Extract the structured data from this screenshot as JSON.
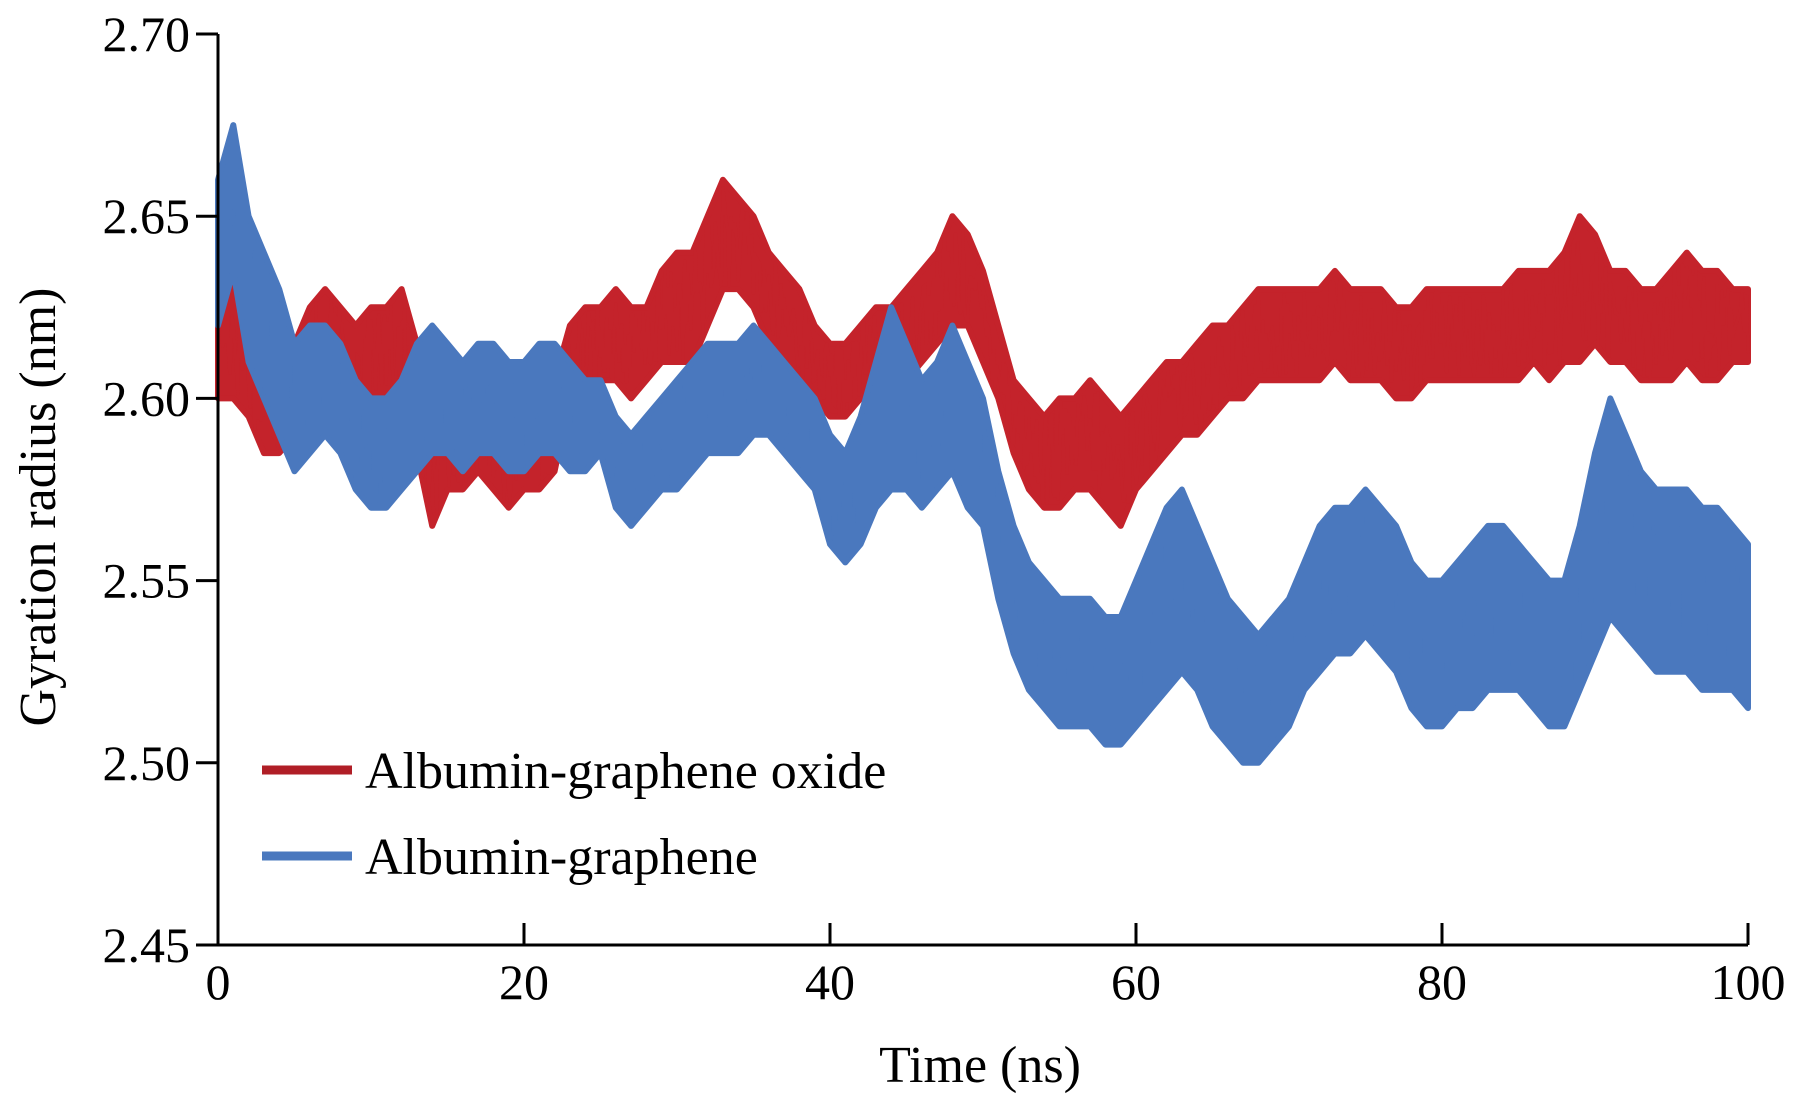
{
  "chart_data": {
    "type": "line",
    "title": "",
    "xlabel": "Time (ns)",
    "ylabel": "Gyration radius (nm)",
    "xlim": [
      0,
      100
    ],
    "ylim": [
      2.45,
      2.7
    ],
    "xticks": [
      0,
      20,
      40,
      60,
      80,
      100
    ],
    "xtick_labels": [
      "0",
      "20",
      "40",
      "60",
      "80",
      "100"
    ],
    "yticks": [
      2.45,
      2.5,
      2.55,
      2.6,
      2.65,
      2.7
    ],
    "ytick_labels": [
      "2.45",
      "2.50",
      "2.55",
      "2.60",
      "2.65",
      "2.70"
    ],
    "grid": false,
    "legend_position": "bottom-left",
    "series": [
      {
        "name": "Albumin-graphene oxide",
        "color": "#c4232b",
        "x": [
          0,
          1,
          2,
          3,
          4,
          5,
          6,
          7,
          8,
          9,
          10,
          11,
          12,
          13,
          14,
          15,
          16,
          17,
          18,
          19,
          20,
          21,
          22,
          23,
          24,
          25,
          26,
          27,
          28,
          29,
          30,
          31,
          32,
          33,
          34,
          35,
          36,
          37,
          38,
          39,
          40,
          41,
          42,
          43,
          44,
          45,
          46,
          47,
          48,
          49,
          50,
          51,
          52,
          53,
          54,
          55,
          56,
          57,
          58,
          59,
          60,
          61,
          62,
          63,
          64,
          65,
          66,
          67,
          68,
          69,
          70,
          71,
          72,
          73,
          74,
          75,
          76,
          77,
          78,
          79,
          80,
          81,
          82,
          83,
          84,
          85,
          86,
          87,
          88,
          89,
          90,
          91,
          92,
          93,
          94,
          95,
          96,
          97,
          98,
          99,
          100
        ],
        "low": [
          2.6,
          2.6,
          2.595,
          2.585,
          2.585,
          2.59,
          2.6,
          2.605,
          2.6,
          2.595,
          2.6,
          2.6,
          2.595,
          2.585,
          2.565,
          2.575,
          2.575,
          2.58,
          2.575,
          2.57,
          2.575,
          2.575,
          2.58,
          2.6,
          2.6,
          2.605,
          2.605,
          2.6,
          2.605,
          2.61,
          2.61,
          2.61,
          2.62,
          2.63,
          2.63,
          2.625,
          2.615,
          2.61,
          2.605,
          2.6,
          2.595,
          2.595,
          2.6,
          2.605,
          2.6,
          2.605,
          2.61,
          2.615,
          2.62,
          2.62,
          2.61,
          2.6,
          2.585,
          2.575,
          2.57,
          2.57,
          2.575,
          2.575,
          2.57,
          2.565,
          2.575,
          2.58,
          2.585,
          2.59,
          2.59,
          2.595,
          2.6,
          2.6,
          2.605,
          2.605,
          2.605,
          2.605,
          2.605,
          2.61,
          2.605,
          2.605,
          2.605,
          2.6,
          2.6,
          2.605,
          2.605,
          2.605,
          2.605,
          2.605,
          2.605,
          2.605,
          2.61,
          2.605,
          2.61,
          2.61,
          2.615,
          2.61,
          2.61,
          2.605,
          2.605,
          2.605,
          2.61,
          2.605,
          2.605,
          2.61,
          2.61
        ],
        "high": [
          2.65,
          2.64,
          2.625,
          2.615,
          2.61,
          2.615,
          2.625,
          2.63,
          2.625,
          2.62,
          2.625,
          2.625,
          2.63,
          2.615,
          2.6,
          2.6,
          2.595,
          2.6,
          2.605,
          2.6,
          2.6,
          2.6,
          2.605,
          2.62,
          2.625,
          2.625,
          2.63,
          2.625,
          2.625,
          2.635,
          2.64,
          2.64,
          2.65,
          2.66,
          2.655,
          2.65,
          2.64,
          2.635,
          2.63,
          2.62,
          2.615,
          2.615,
          2.62,
          2.625,
          2.625,
          2.63,
          2.635,
          2.64,
          2.65,
          2.645,
          2.635,
          2.62,
          2.605,
          2.6,
          2.595,
          2.6,
          2.6,
          2.605,
          2.6,
          2.595,
          2.6,
          2.605,
          2.61,
          2.61,
          2.615,
          2.62,
          2.62,
          2.625,
          2.63,
          2.63,
          2.63,
          2.63,
          2.63,
          2.635,
          2.63,
          2.63,
          2.63,
          2.625,
          2.625,
          2.63,
          2.63,
          2.63,
          2.63,
          2.63,
          2.63,
          2.635,
          2.635,
          2.635,
          2.64,
          2.65,
          2.645,
          2.635,
          2.635,
          2.63,
          2.63,
          2.635,
          2.64,
          2.635,
          2.635,
          2.63,
          2.63
        ]
      },
      {
        "name": "Albumin-graphene",
        "color": "#4a78be",
        "x": [
          0,
          1,
          2,
          3,
          4,
          5,
          6,
          7,
          8,
          9,
          10,
          11,
          12,
          13,
          14,
          15,
          16,
          17,
          18,
          19,
          20,
          21,
          22,
          23,
          24,
          25,
          26,
          27,
          28,
          29,
          30,
          31,
          32,
          33,
          34,
          35,
          36,
          37,
          38,
          39,
          40,
          41,
          42,
          43,
          44,
          45,
          46,
          47,
          48,
          49,
          50,
          51,
          52,
          53,
          54,
          55,
          56,
          57,
          58,
          59,
          60,
          61,
          62,
          63,
          64,
          65,
          66,
          67,
          68,
          69,
          70,
          71,
          72,
          73,
          74,
          75,
          76,
          77,
          78,
          79,
          80,
          81,
          82,
          83,
          84,
          85,
          86,
          87,
          88,
          89,
          90,
          91,
          92,
          93,
          94,
          95,
          96,
          97,
          98,
          99,
          100
        ],
        "low": [
          2.62,
          2.635,
          2.61,
          2.6,
          2.59,
          2.58,
          2.585,
          2.59,
          2.585,
          2.575,
          2.57,
          2.57,
          2.575,
          2.58,
          2.585,
          2.585,
          2.58,
          2.585,
          2.585,
          2.58,
          2.58,
          2.585,
          2.585,
          2.58,
          2.58,
          2.585,
          2.57,
          2.565,
          2.57,
          2.575,
          2.575,
          2.58,
          2.585,
          2.585,
          2.585,
          2.59,
          2.59,
          2.585,
          2.58,
          2.575,
          2.56,
          2.555,
          2.56,
          2.57,
          2.575,
          2.575,
          2.57,
          2.575,
          2.58,
          2.57,
          2.565,
          2.545,
          2.53,
          2.52,
          2.515,
          2.51,
          2.51,
          2.51,
          2.505,
          2.505,
          2.51,
          2.515,
          2.52,
          2.525,
          2.52,
          2.51,
          2.505,
          2.5,
          2.5,
          2.505,
          2.51,
          2.52,
          2.525,
          2.53,
          2.53,
          2.535,
          2.53,
          2.525,
          2.515,
          2.51,
          2.51,
          2.515,
          2.515,
          2.52,
          2.52,
          2.52,
          2.515,
          2.51,
          2.51,
          2.52,
          2.53,
          2.54,
          2.535,
          2.53,
          2.525,
          2.525,
          2.525,
          2.52,
          2.52,
          2.52,
          2.515
        ],
        "high": [
          2.66,
          2.675,
          2.65,
          2.64,
          2.63,
          2.615,
          2.62,
          2.62,
          2.615,
          2.605,
          2.6,
          2.6,
          2.605,
          2.615,
          2.62,
          2.615,
          2.61,
          2.615,
          2.615,
          2.61,
          2.61,
          2.615,
          2.615,
          2.61,
          2.605,
          2.605,
          2.595,
          2.59,
          2.595,
          2.6,
          2.605,
          2.61,
          2.615,
          2.615,
          2.615,
          2.62,
          2.615,
          2.61,
          2.605,
          2.6,
          2.59,
          2.585,
          2.595,
          2.61,
          2.625,
          2.615,
          2.605,
          2.61,
          2.62,
          2.61,
          2.6,
          2.58,
          2.565,
          2.555,
          2.55,
          2.545,
          2.545,
          2.545,
          2.54,
          2.54,
          2.55,
          2.56,
          2.57,
          2.575,
          2.565,
          2.555,
          2.545,
          2.54,
          2.535,
          2.54,
          2.545,
          2.555,
          2.565,
          2.57,
          2.57,
          2.575,
          2.57,
          2.565,
          2.555,
          2.55,
          2.55,
          2.555,
          2.56,
          2.565,
          2.565,
          2.56,
          2.555,
          2.55,
          2.55,
          2.565,
          2.585,
          2.6,
          2.59,
          2.58,
          2.575,
          2.575,
          2.575,
          2.57,
          2.57,
          2.565,
          2.56
        ]
      }
    ]
  }
}
